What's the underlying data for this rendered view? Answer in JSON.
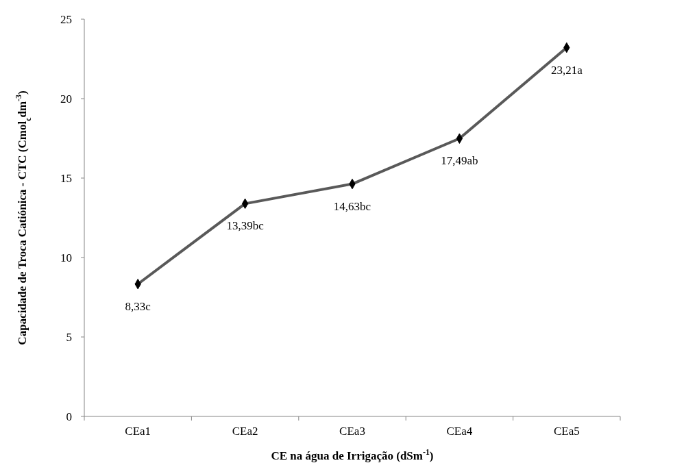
{
  "chart_data": {
    "type": "line",
    "xlabel": "CE na água de Irrigação  (dSm$^{-1}$)",
    "ylabel": "Capacidade de Troca Catiónica - CTC (Cmol$_{c}$dm$^{-3}$)",
    "categories": [
      "CEa1",
      "CEa2",
      "CEa3",
      "CEa4",
      "CEa5"
    ],
    "series": [
      {
        "color": "#595959",
        "values": [
          8.33,
          13.39,
          14.63,
          17.49,
          23.21
        ],
        "value_labels": [
          "8,33c",
          "13,39bc",
          "14,63bc",
          "17,49ab",
          "23,21a"
        ]
      }
    ],
    "ylim": [
      0,
      25
    ],
    "yticks": [
      0,
      5,
      10,
      15,
      20,
      25
    ],
    "grid": false,
    "marker": "diamond",
    "line_style": "solid"
  }
}
